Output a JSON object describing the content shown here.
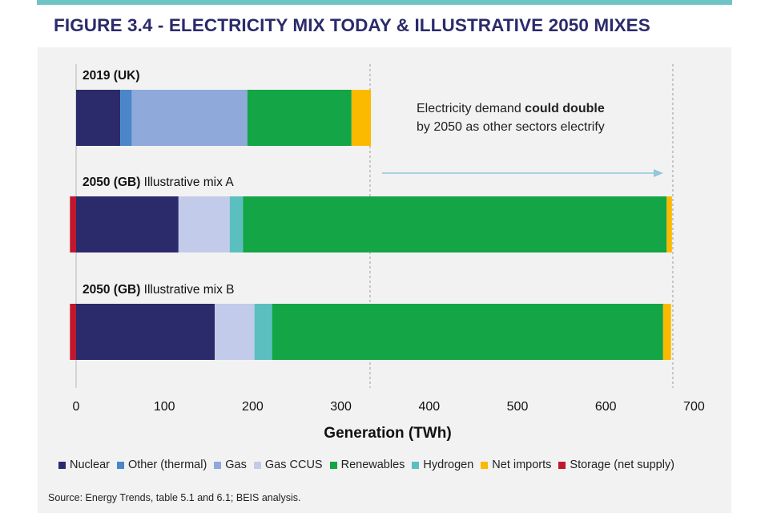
{
  "title": "FIGURE 3.4 - ELECTRICITY MIX TODAY & ILLUSTRATIVE 2050 MIXES",
  "source": "Source: Energy Trends, table 5.1 and 6.1; BEIS analysis.",
  "annotation": {
    "pre": "Electricity demand ",
    "bold": "could double",
    "line2": "by 2050 as other sectors electrify"
  },
  "colors": {
    "Nuclear": "#2b2a6b",
    "Other (thermal)": "#4a86c8",
    "Gas": "#8ea9da",
    "Gas CCUS": "#c3cbea",
    "Renewables": "#13a546",
    "Hydrogen": "#5cbfbf",
    "Net imports": "#fbba00",
    "Storage (net supply)": "#c0172d",
    "arrow": "#8fc7dc",
    "guide": "#aaaaaa"
  },
  "chart_data": {
    "type": "bar",
    "orientation": "horizontal",
    "stacked": true,
    "xlabel": "Generation (TWh)",
    "ylabel": "",
    "xlim": [
      -7,
      700
    ],
    "xticks": [
      0,
      100,
      200,
      300,
      400,
      500,
      600,
      700
    ],
    "legend": [
      "Nuclear",
      "Other (thermal)",
      "Gas",
      "Gas CCUS",
      "Renewables",
      "Hydrogen",
      "Net imports",
      "Storage (net supply)"
    ],
    "legend_position": "bottom",
    "reference_lines": [
      333,
      676
    ],
    "bars": [
      {
        "label_bold": "2019 (UK)",
        "label_rest": "",
        "segments": [
          {
            "name": "Nuclear",
            "value": 50
          },
          {
            "name": "Other (thermal)",
            "value": 13
          },
          {
            "name": "Gas",
            "value": 131
          },
          {
            "name": "Renewables",
            "value": 118
          },
          {
            "name": "Net imports",
            "value": 22
          }
        ]
      },
      {
        "label_bold": "2050 (GB)",
        "label_rest": " Illustrative mix A",
        "segments": [
          {
            "name": "Storage (net supply)",
            "value": 7
          },
          {
            "name": "Nuclear",
            "value": 116
          },
          {
            "name": "Gas CCUS",
            "value": 58
          },
          {
            "name": "Hydrogen",
            "value": 15
          },
          {
            "name": "Renewables",
            "value": 480
          },
          {
            "name": "Net imports",
            "value": 6
          }
        ]
      },
      {
        "label_bold": "2050 (GB)",
        "label_rest": " Illustrative mix B",
        "segments": [
          {
            "name": "Storage (net supply)",
            "value": 7
          },
          {
            "name": "Nuclear",
            "value": 157
          },
          {
            "name": "Gas CCUS",
            "value": 45
          },
          {
            "name": "Hydrogen",
            "value": 20
          },
          {
            "name": "Renewables",
            "value": 443
          },
          {
            "name": "Net imports",
            "value": 9
          }
        ]
      }
    ]
  }
}
